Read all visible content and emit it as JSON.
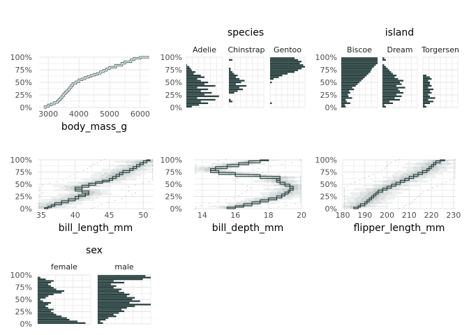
{
  "colors": {
    "dark": "#28403f",
    "band1": "#c8cfce",
    "band2": "#dde2e1",
    "band3": "#eef0f0",
    "grid": "#e3e3e3",
    "accent_white": "#ffffff"
  },
  "y_ticks": [
    "0%",
    "25%",
    "50%",
    "75%",
    "100%"
  ],
  "chart_data": [
    {
      "type": "line",
      "subtype": "ecdf",
      "xlabel": "body_mass_g",
      "xlim": [
        2700,
        6300
      ],
      "x_ticks": [
        3000,
        4000,
        5000,
        6000
      ],
      "ylim": [
        0,
        1
      ],
      "points": [
        [
          2850,
          0
        ],
        [
          2900,
          0.02
        ],
        [
          3000,
          0.05
        ],
        [
          3100,
          0.07
        ],
        [
          3200,
          0.1
        ],
        [
          3300,
          0.13
        ],
        [
          3350,
          0.16
        ],
        [
          3400,
          0.19
        ],
        [
          3450,
          0.23
        ],
        [
          3500,
          0.27
        ],
        [
          3550,
          0.3
        ],
        [
          3600,
          0.33
        ],
        [
          3650,
          0.36
        ],
        [
          3700,
          0.4
        ],
        [
          3750,
          0.44
        ],
        [
          3800,
          0.48
        ],
        [
          3900,
          0.51
        ],
        [
          4000,
          0.55
        ],
        [
          4100,
          0.57
        ],
        [
          4200,
          0.6
        ],
        [
          4300,
          0.62
        ],
        [
          4400,
          0.64
        ],
        [
          4500,
          0.66
        ],
        [
          4600,
          0.68
        ],
        [
          4700,
          0.71
        ],
        [
          4800,
          0.74
        ],
        [
          4900,
          0.77
        ],
        [
          5000,
          0.8
        ],
        [
          5200,
          0.84
        ],
        [
          5400,
          0.88
        ],
        [
          5500,
          0.91
        ],
        [
          5700,
          0.95
        ],
        [
          5800,
          0.98
        ],
        [
          6000,
          1.0
        ],
        [
          6300,
          1.0
        ]
      ]
    },
    {
      "type": "bar",
      "subtype": "faceted-horizontal",
      "title": "species",
      "facets": [
        {
          "label": "Adelie",
          "values": [
            0.15,
            0.35,
            0.6,
            0.4,
            0.8,
            0.3,
            0.9,
            0.5,
            0.7,
            0.4,
            0.6,
            0.3,
            0.8,
            0.5,
            0.6,
            0.4,
            0.3,
            0.5,
            0.4,
            0.2,
            0.25,
            0.15,
            0.12,
            0.08,
            0.02,
            0,
            0,
            0,
            0
          ]
        },
        {
          "label": "Chinstrap",
          "values": [
            0,
            0,
            0,
            0.1,
            0.05,
            0,
            0,
            0,
            0.15,
            0.25,
            0.4,
            0.3,
            0.5,
            0.2,
            0.35,
            0.45,
            0.3,
            0.2,
            0.25,
            0.15,
            0.1,
            0.05,
            0.05,
            0,
            0,
            0,
            0,
            0.1,
            0
          ]
        },
        {
          "label": "Gentoo",
          "values": [
            0,
            0,
            0.05,
            0,
            0,
            0,
            0,
            0,
            0,
            0,
            0,
            0,
            0,
            0,
            0.05,
            0,
            0.1,
            0.25,
            0.35,
            0.5,
            0.7,
            0.8,
            0.9,
            1.0,
            0.95,
            0.85,
            0.9,
            0.8,
            0.7
          ]
        }
      ]
    },
    {
      "type": "bar",
      "subtype": "faceted-horizontal",
      "title": "island",
      "facets": [
        {
          "label": "Biscoe",
          "values": [
            0.12,
            0.1,
            0.25,
            0.15,
            0.12,
            0.3,
            0.2,
            0.18,
            0.25,
            0.22,
            0.35,
            0.3,
            0.4,
            0.45,
            0.5,
            0.55,
            0.6,
            0.65,
            0.7,
            0.75,
            0.8,
            0.82,
            0.85,
            0.9,
            0.95,
            1.0,
            1.0,
            1.0,
            1.0
          ]
        },
        {
          "label": "Dream",
          "values": [
            0.1,
            0.05,
            0.3,
            0.2,
            0.5,
            0.35,
            0.55,
            0.4,
            0.6,
            0.5,
            0.45,
            0.65,
            0.4,
            0.55,
            0.5,
            0.6,
            0.45,
            0.35,
            0.4,
            0.3,
            0.25,
            0.2,
            0.15,
            0.1,
            0.05,
            0,
            0,
            0.1,
            0.05
          ]
        },
        {
          "label": "Torgersen",
          "values": [
            0.1,
            0.05,
            0.2,
            0.3,
            0.15,
            0.35,
            0.2,
            0.15,
            0.25,
            0.2,
            0.3,
            0.15,
            0.25,
            0.2,
            0.2,
            0.15,
            0.25,
            0.2,
            0.1,
            0,
            0,
            0,
            0,
            0,
            0,
            0,
            0,
            0,
            0
          ]
        }
      ]
    },
    {
      "type": "line",
      "subtype": "ecdf-with-interval-bands",
      "xlabel": "bill_length_mm",
      "xlim": [
        34.5,
        51.5
      ],
      "x_ticks": [
        35,
        40,
        45,
        50
      ],
      "ylim": [
        0,
        1
      ],
      "points": [
        [
          35.5,
          0
        ],
        [
          36,
          0.02
        ],
        [
          36.5,
          0.05
        ],
        [
          37,
          0.08
        ],
        [
          38,
          0.12
        ],
        [
          39,
          0.16
        ],
        [
          40,
          0.2
        ],
        [
          40.5,
          0.25
        ],
        [
          41.5,
          0.28
        ],
        [
          42,
          0.32
        ],
        [
          41,
          0.36
        ],
        [
          40,
          0.4
        ],
        [
          41,
          0.44
        ],
        [
          42,
          0.48
        ],
        [
          43,
          0.52
        ],
        [
          44,
          0.55
        ],
        [
          45,
          0.58
        ],
        [
          45.5,
          0.62
        ],
        [
          46,
          0.66
        ],
        [
          46.5,
          0.7
        ],
        [
          47,
          0.74
        ],
        [
          48,
          0.78
        ],
        [
          48.5,
          0.82
        ],
        [
          49,
          0.86
        ],
        [
          49.5,
          0.9
        ],
        [
          50,
          0.94
        ],
        [
          50.5,
          0.98
        ],
        [
          51,
          1.0
        ]
      ]
    },
    {
      "type": "line",
      "subtype": "ecdf-with-interval-bands",
      "xlabel": "bill_depth_mm",
      "xlim": [
        13.5,
        20
      ],
      "x_ticks": [
        14,
        16,
        18,
        20
      ],
      "ylim": [
        0,
        1
      ],
      "points": [
        [
          15.5,
          0
        ],
        [
          16,
          0.03
        ],
        [
          16.5,
          0.06
        ],
        [
          17,
          0.1
        ],
        [
          17.5,
          0.14
        ],
        [
          18,
          0.18
        ],
        [
          18.5,
          0.22
        ],
        [
          18.8,
          0.26
        ],
        [
          19,
          0.3
        ],
        [
          19.2,
          0.34
        ],
        [
          19.3,
          0.38
        ],
        [
          19.5,
          0.42
        ],
        [
          19.3,
          0.46
        ],
        [
          19,
          0.5
        ],
        [
          18.7,
          0.54
        ],
        [
          18.5,
          0.58
        ],
        [
          18.7,
          0.62
        ],
        [
          17.5,
          0.66
        ],
        [
          16,
          0.7
        ],
        [
          15,
          0.74
        ],
        [
          14.5,
          0.78
        ],
        [
          14.8,
          0.82
        ],
        [
          15.5,
          0.86
        ],
        [
          16.2,
          0.9
        ],
        [
          16.8,
          0.94
        ],
        [
          17.5,
          0.98
        ],
        [
          18,
          1.0
        ]
      ]
    },
    {
      "type": "line",
      "subtype": "ecdf-with-interval-bands",
      "xlabel": "flipper_length_mm",
      "xlim": [
        180,
        231
      ],
      "x_ticks": [
        180,
        190,
        200,
        210,
        220,
        230
      ],
      "ylim": [
        0,
        1
      ],
      "points": [
        [
          185,
          0
        ],
        [
          187,
          0.03
        ],
        [
          188,
          0.06
        ],
        [
          190,
          0.1
        ],
        [
          191,
          0.14
        ],
        [
          192,
          0.18
        ],
        [
          193,
          0.22
        ],
        [
          194,
          0.26
        ],
        [
          195,
          0.3
        ],
        [
          196,
          0.34
        ],
        [
          198,
          0.38
        ],
        [
          200,
          0.42
        ],
        [
          202,
          0.46
        ],
        [
          204,
          0.5
        ],
        [
          206,
          0.54
        ],
        [
          208,
          0.58
        ],
        [
          210,
          0.62
        ],
        [
          212,
          0.66
        ],
        [
          214,
          0.7
        ],
        [
          216,
          0.74
        ],
        [
          218,
          0.78
        ],
        [
          219,
          0.82
        ],
        [
          220,
          0.86
        ],
        [
          221,
          0.9
        ],
        [
          222,
          0.94
        ],
        [
          224,
          0.98
        ],
        [
          226,
          1.0
        ]
      ]
    },
    {
      "type": "bar",
      "subtype": "faceted-horizontal",
      "title": "sex",
      "facets": [
        {
          "label": "female",
          "values": [
            0.9,
            0.75,
            0.6,
            0.55,
            0.45,
            0.35,
            0.3,
            0.25,
            0.3,
            0.2,
            0.15,
            0.2,
            0.25,
            0.1,
            0.05,
            0.15,
            0.2,
            0.3,
            0.45,
            0.5,
            0.35,
            0.3,
            0.25,
            0.2,
            0.25,
            0.3,
            0.15,
            0.05,
            0
          ]
        },
        {
          "label": "male",
          "values": [
            0.1,
            0.05,
            0.15,
            0.2,
            0.35,
            0.3,
            0.4,
            0.5,
            0.45,
            0.55,
            0.7,
            1.0,
            0.6,
            0.8,
            0.65,
            0.7,
            0.55,
            0.6,
            0.5,
            0.4,
            0.45,
            0.3,
            0.35,
            0.25,
            0.5,
            0.3,
            0.85,
            1.0,
            0.9
          ]
        }
      ]
    }
  ]
}
